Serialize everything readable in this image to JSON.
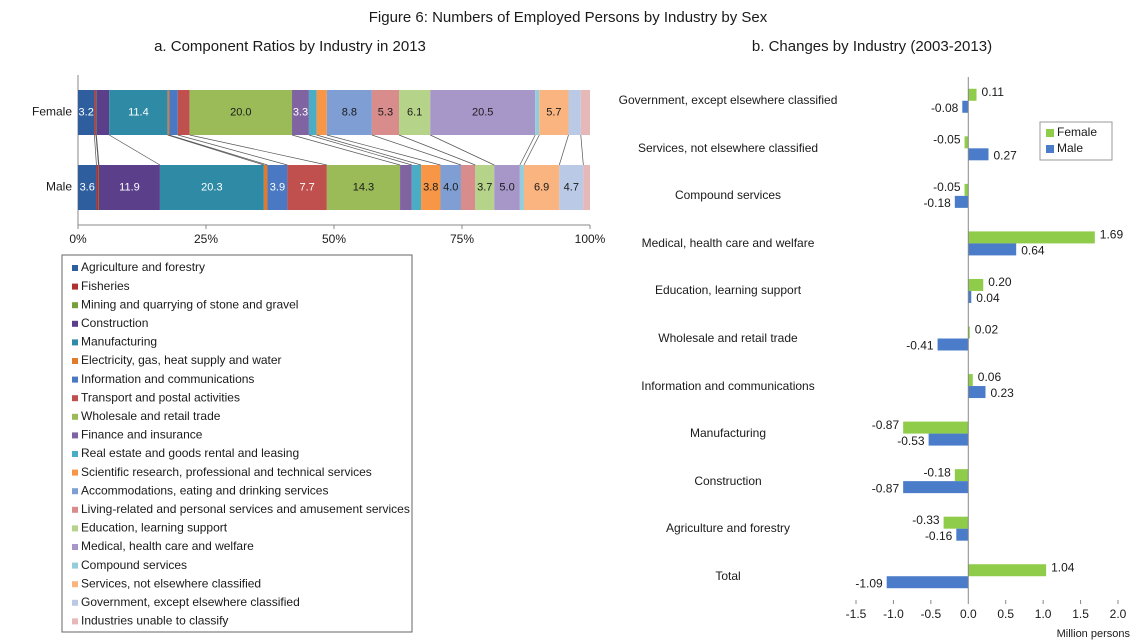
{
  "title": "Figure 6: Numbers of Employed Persons by Industry by Sex",
  "chart_data": [
    {
      "type": "bar",
      "orientation": "horizontal",
      "stacked": true,
      "title": "a. Component Ratios by Industry in 2013",
      "categories": [
        "Female",
        "Male"
      ],
      "xlim": [
        0,
        100
      ],
      "xticks": [
        {
          "value": 0,
          "label": "0%"
        },
        {
          "value": 25,
          "label": "25%"
        },
        {
          "value": 50,
          "label": "50%"
        },
        {
          "value": 75,
          "label": "75%"
        },
        {
          "value": 100,
          "label": "100%"
        }
      ],
      "legend": "bottom",
      "series": [
        {
          "name": "Agriculture and forestry",
          "color": "#2e5e9e",
          "values": [
            3.2,
            3.6
          ],
          "value_labels": [
            "3.2",
            "3.6"
          ]
        },
        {
          "name": "Fisheries",
          "color": "#b0302f",
          "values": [
            0.3,
            0.4
          ],
          "value_labels": [
            null,
            null
          ]
        },
        {
          "name": "Mining and quarrying of stone and gravel",
          "color": "#76a03a",
          "values": [
            0.1,
            0.1
          ],
          "value_labels": [
            null,
            null
          ]
        },
        {
          "name": "Construction",
          "color": "#5b3f8a",
          "values": [
            2.5,
            11.9
          ],
          "value_labels": [
            null,
            "11.9"
          ]
        },
        {
          "name": "Manufacturing",
          "color": "#2f8aa6",
          "values": [
            11.4,
            20.3
          ],
          "value_labels": [
            "11.4",
            "20.3"
          ]
        },
        {
          "name": "Electricity, gas, heat supply and water",
          "color": "#e07b2a",
          "values": [
            0.3,
            0.7
          ],
          "value_labels": [
            null,
            null
          ]
        },
        {
          "name": "Information and communications",
          "color": "#4a78c2",
          "values": [
            1.7,
            3.9
          ],
          "value_labels": [
            null,
            "3.9"
          ]
        },
        {
          "name": "Transport and postal activities",
          "color": "#c0504d",
          "values": [
            2.3,
            7.7
          ],
          "value_labels": [
            null,
            "7.7"
          ]
        },
        {
          "name": "Wholesale and retail trade",
          "color": "#9bbb59",
          "values": [
            20.0,
            14.3
          ],
          "value_labels": [
            "20.0",
            "14.3"
          ]
        },
        {
          "name": "Finance and insurance",
          "color": "#8064a2",
          "values": [
            3.3,
            2.3
          ],
          "value_labels": [
            "3.3",
            null
          ]
        },
        {
          "name": "Real estate and goods rental and leasing",
          "color": "#4bacc6",
          "values": [
            1.5,
            1.8
          ],
          "value_labels": [
            null,
            null
          ]
        },
        {
          "name": "Scientific research, professional and technical services",
          "color": "#f79646",
          "values": [
            2.0,
            3.8
          ],
          "value_labels": [
            null,
            "3.8"
          ]
        },
        {
          "name": "Accommodations, eating and drinking services",
          "color": "#7f9fd4",
          "values": [
            8.8,
            4.0
          ],
          "value_labels": [
            "8.8",
            "4.0"
          ]
        },
        {
          "name": "Living-related and personal services and amusement services",
          "color": "#d98c8c",
          "values": [
            5.3,
            2.8
          ],
          "value_labels": [
            "5.3",
            null
          ]
        },
        {
          "name": "Education, learning support",
          "color": "#b6d38a",
          "values": [
            6.1,
            3.7
          ],
          "value_labels": [
            "6.1",
            "3.7"
          ]
        },
        {
          "name": "Medical, health care and welfare",
          "color": "#a796c8",
          "values": [
            20.5,
            5.0
          ],
          "value_labels": [
            "20.5",
            "5.0"
          ]
        },
        {
          "name": "Compound services",
          "color": "#93cddd",
          "values": [
            0.8,
            0.8
          ],
          "value_labels": [
            null,
            null
          ]
        },
        {
          "name": "Services, not elsewhere classified",
          "color": "#fab47f",
          "values": [
            5.7,
            6.9
          ],
          "value_labels": [
            "5.7",
            "6.9"
          ]
        },
        {
          "name": "Government, except elsewhere classified",
          "color": "#b9c9e6",
          "values": [
            2.4,
            4.7
          ],
          "value_labels": [
            null,
            "4.7"
          ]
        },
        {
          "name": "Industries unable to classify",
          "color": "#e6b9b8",
          "values": [
            1.8,
            1.3
          ],
          "value_labels": [
            null,
            null
          ]
        }
      ]
    },
    {
      "type": "bar",
      "orientation": "horizontal",
      "stacked": false,
      "title": "b. Changes by Industry (2003-2013)",
      "categories": [
        "Government, except elsewhere classified",
        "Services, not elsewhere classified",
        "Compound services",
        "Medical, health care and welfare",
        "Education, learning support",
        "Wholesale and retail trade",
        "Information and communications",
        "Manufacturing",
        "Construction",
        "Agriculture and forestry",
        "Total"
      ],
      "xlim": [
        -1.5,
        2.0
      ],
      "xticks": [
        -1.5,
        {
          "value": -1,
          "label": "-1.0"
        },
        -0.5,
        {
          "value": 0,
          "label": "0.0"
        },
        0.5,
        {
          "value": 1,
          "label": "1.0"
        },
        1.5,
        {
          "value": 2,
          "label": "2.0"
        }
      ],
      "xlabel": "Million persons",
      "legend": "top-right",
      "series": [
        {
          "name": "Female",
          "color": "#8fcc4a",
          "values": [
            0.11,
            -0.05,
            -0.05,
            1.69,
            0.2,
            0.02,
            0.06,
            -0.87,
            -0.18,
            -0.33,
            1.04
          ],
          "value_labels": [
            "0.11",
            "-0.05",
            "-0.05",
            "1.69",
            "0.20",
            "0.02",
            "0.06",
            "-0.87",
            "-0.18",
            "-0.33",
            "1.04"
          ]
        },
        {
          "name": "Male",
          "color": "#4a7cc9",
          "values": [
            -0.08,
            0.27,
            -0.18,
            0.64,
            0.04,
            -0.41,
            0.23,
            -0.53,
            -0.87,
            -0.16,
            -1.09
          ],
          "value_labels": [
            "-0.08",
            "0.27",
            "-0.18",
            "0.64",
            "0.04",
            "-0.41",
            "0.23",
            "-0.53",
            "-0.87",
            "-0.16",
            "-1.09"
          ]
        }
      ]
    }
  ]
}
